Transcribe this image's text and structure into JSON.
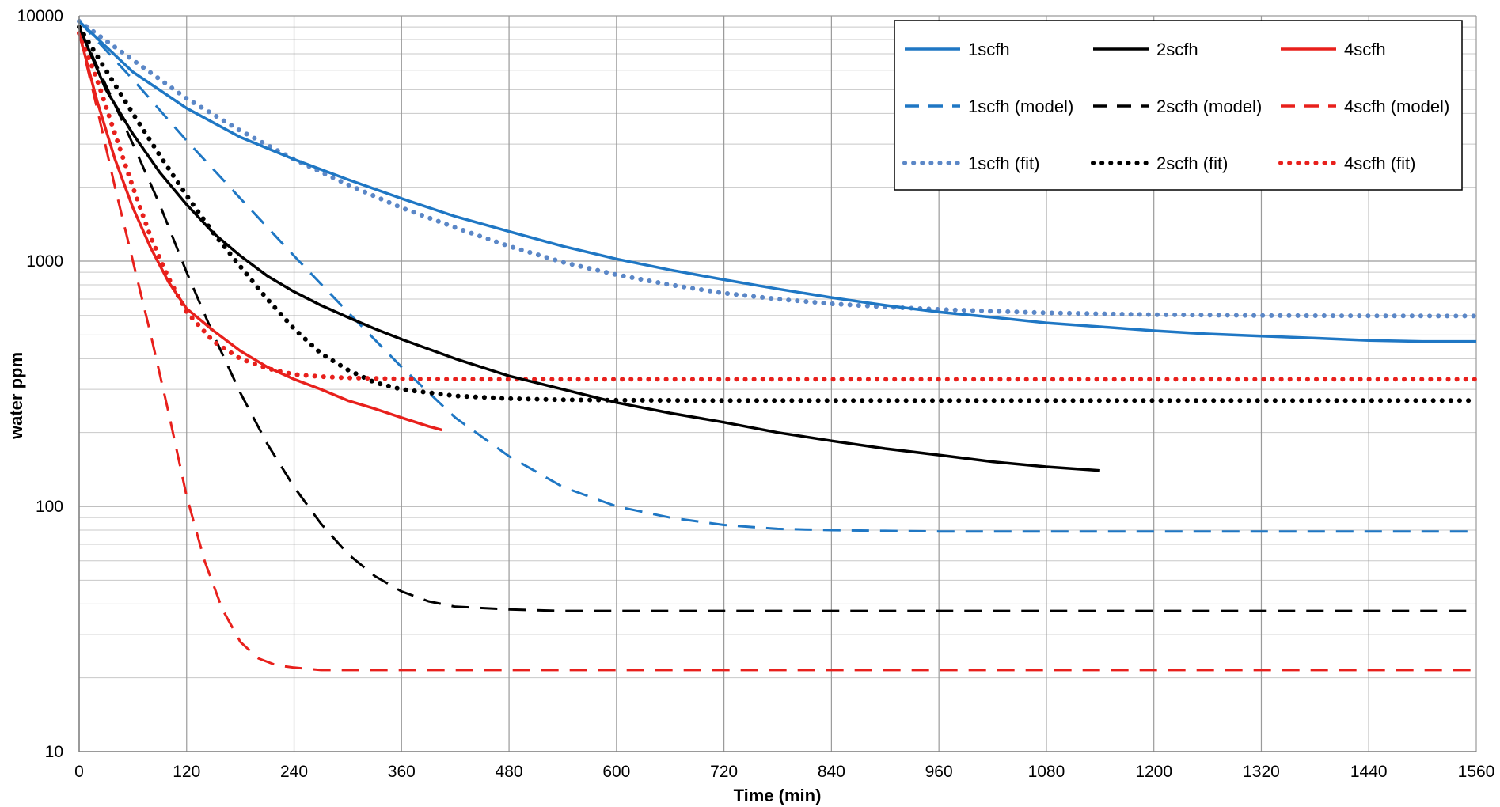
{
  "chart_data": {
    "type": "line",
    "title": "",
    "xlabel": "Time (min)",
    "ylabel": "water ppm",
    "xlim": [
      0,
      1560
    ],
    "ylim": [
      10,
      10000
    ],
    "y_scale": "log",
    "grid": true,
    "legend_position": "top-right",
    "x_ticks": [
      "0",
      "120",
      "240",
      "360",
      "480",
      "600",
      "720",
      "840",
      "960",
      "1080",
      "1200",
      "1320",
      "1440",
      "1560"
    ],
    "y_ticks": [
      "10",
      "100",
      "1000",
      "10000"
    ],
    "colors": {
      "blue": "#1f77c4",
      "blue_fit": "#5b87c7",
      "black": "#000000",
      "red": "#e8201c"
    },
    "series": [
      {
        "name": "1scfh",
        "style": "solid",
        "color": "#1f77c4",
        "x": [
          0,
          60,
          120,
          180,
          240,
          300,
          360,
          420,
          480,
          540,
          600,
          660,
          720,
          780,
          840,
          900,
          960,
          1020,
          1080,
          1140,
          1200,
          1260,
          1320,
          1380,
          1440,
          1500,
          1560
        ],
        "y": [
          9500,
          5900,
          4200,
          3200,
          2600,
          2150,
          1800,
          1520,
          1320,
          1150,
          1020,
          920,
          840,
          770,
          710,
          660,
          620,
          590,
          560,
          540,
          520,
          505,
          495,
          485,
          475,
          470,
          470
        ]
      },
      {
        "name": "2scfh",
        "style": "solid",
        "color": "#000000",
        "x": [
          0,
          30,
          60,
          90,
          120,
          150,
          180,
          210,
          240,
          270,
          300,
          330,
          360,
          420,
          480,
          540,
          600,
          660,
          720,
          780,
          840,
          900,
          960,
          1020,
          1080,
          1140
        ],
        "y": [
          9000,
          5000,
          3300,
          2300,
          1700,
          1300,
          1050,
          870,
          750,
          660,
          590,
          530,
          480,
          400,
          340,
          300,
          265,
          240,
          220,
          200,
          185,
          172,
          162,
          152,
          145,
          140
        ]
      },
      {
        "name": "4scfh",
        "style": "solid",
        "color": "#e8201c",
        "x": [
          0,
          20,
          40,
          60,
          80,
          100,
          120,
          150,
          180,
          210,
          240,
          270,
          300,
          330,
          360,
          390,
          405
        ],
        "y": [
          8500,
          4500,
          2600,
          1650,
          1130,
          820,
          640,
          520,
          430,
          370,
          330,
          300,
          270,
          250,
          230,
          212,
          205
        ]
      },
      {
        "name": "1scfh (model)",
        "style": "dashed",
        "color": "#1f77c4",
        "x": [
          0,
          60,
          120,
          180,
          240,
          300,
          360,
          420,
          480,
          540,
          600,
          660,
          720,
          780,
          840,
          900,
          960,
          1080,
          1200,
          1320,
          1440,
          1560
        ],
        "y": [
          9500,
          5500,
          3100,
          1800,
          1050,
          620,
          370,
          230,
          160,
          120,
          100,
          90,
          84,
          81,
          80,
          79.5,
          79,
          79,
          79,
          79,
          79,
          79
        ]
      },
      {
        "name": "2scfh (model)",
        "style": "dashed",
        "color": "#000000",
        "x": [
          0,
          30,
          60,
          90,
          120,
          150,
          180,
          210,
          240,
          270,
          300,
          330,
          360,
          390,
          420,
          480,
          540,
          600,
          720,
          840,
          960,
          1080,
          1200,
          1320,
          1440,
          1560
        ],
        "y": [
          9000,
          5200,
          3000,
          1700,
          900,
          500,
          290,
          180,
          120,
          85,
          64,
          52,
          45,
          41,
          39,
          38,
          37.5,
          37.5,
          37.5,
          37.5,
          37.5,
          37.5,
          37.5,
          37.5,
          37.5,
          37.5
        ]
      },
      {
        "name": "4scfh (model)",
        "style": "dashed",
        "color": "#e8201c",
        "x": [
          0,
          20,
          40,
          60,
          80,
          100,
          120,
          140,
          160,
          180,
          200,
          220,
          240,
          270,
          300,
          360,
          480,
          600,
          720,
          840,
          960,
          1080,
          1200,
          1320,
          1440,
          1560
        ],
        "y": [
          8500,
          4200,
          2000,
          1000,
          500,
          240,
          110,
          60,
          38,
          28,
          24,
          22.5,
          22,
          21.5,
          21.5,
          21.5,
          21.5,
          21.5,
          21.5,
          21.5,
          21.5,
          21.5,
          21.5,
          21.5,
          21.5,
          21.5
        ]
      },
      {
        "name": "1scfh (fit)",
        "style": "dotted",
        "color": "#5b87c7",
        "x": [
          0,
          60,
          120,
          180,
          240,
          300,
          360,
          420,
          480,
          540,
          600,
          660,
          720,
          780,
          840,
          900,
          960,
          1020,
          1080,
          1200,
          1320,
          1440,
          1560
        ],
        "y": [
          9500,
          6600,
          4600,
          3400,
          2600,
          2050,
          1650,
          1370,
          1150,
          990,
          880,
          800,
          740,
          700,
          670,
          650,
          635,
          625,
          615,
          605,
          600,
          598,
          597
        ]
      },
      {
        "name": "2scfh (fit)",
        "style": "dotted",
        "color": "#000000",
        "x": [
          0,
          30,
          60,
          90,
          120,
          150,
          180,
          210,
          240,
          270,
          300,
          330,
          360,
          420,
          480,
          540,
          600,
          720,
          840,
          960,
          1080,
          1200,
          1320,
          1440,
          1560
        ],
        "y": [
          9000,
          6000,
          4000,
          2700,
          1850,
          1300,
          950,
          700,
          530,
          420,
          360,
          320,
          300,
          282,
          275,
          272,
          271,
          270,
          270,
          270,
          270,
          270,
          270,
          270,
          270
        ]
      },
      {
        "name": "4scfh (fit)",
        "style": "dotted",
        "color": "#e8201c",
        "x": [
          0,
          20,
          40,
          60,
          80,
          100,
          120,
          150,
          180,
          210,
          240,
          270,
          300,
          360,
          480,
          600,
          720,
          840,
          960,
          1080,
          1200,
          1320,
          1440,
          1560
        ],
        "y": [
          8500,
          5500,
          3300,
          2000,
          1250,
          850,
          620,
          470,
          400,
          365,
          345,
          338,
          334,
          331,
          330,
          330,
          330,
          330,
          330,
          330,
          330,
          330,
          330,
          330
        ]
      }
    ]
  }
}
